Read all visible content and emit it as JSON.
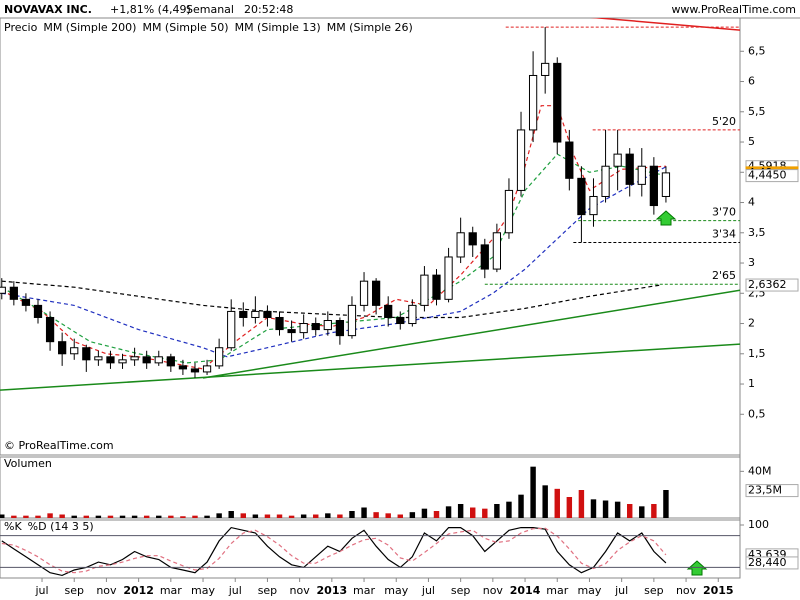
{
  "header": {
    "symbol": "NOVAVAX INC.",
    "change": "+1,81% (4,49)",
    "period": "Semanal",
    "time": "20:52:48",
    "site": "www.ProRealTime.com",
    "copyright": "© ProRealTime.com"
  },
  "chart_data": [
    {
      "type": "candlestick",
      "name": "Precio",
      "x": [
        -2.5,
        -1.75,
        -1,
        -0.25,
        0.5,
        1.25,
        2,
        2.75,
        3.5,
        4.25,
        5,
        5.75,
        6.5,
        7.25,
        8,
        8.75,
        9.5,
        10.25,
        11,
        11.75,
        12.5,
        13.25,
        14,
        14.75,
        15.5,
        16.25,
        17,
        17.75,
        18.5,
        19.25,
        20,
        20.75,
        21.5,
        22.25,
        23,
        23.75,
        24.5,
        25.25,
        26,
        26.75,
        27.5,
        28.25,
        29,
        29.75,
        30.5,
        31.25,
        32,
        32.75,
        33.5,
        34.25,
        35,
        35.75,
        36.5,
        37.25,
        38,
        38.75
      ],
      "open": [
        2.5,
        2.6,
        2.4,
        2.3,
        2.1,
        1.7,
        1.5,
        1.6,
        1.4,
        1.45,
        1.35,
        1.4,
        1.45,
        1.35,
        1.45,
        1.3,
        1.25,
        1.2,
        1.3,
        1.6,
        2.2,
        2.1,
        2.2,
        2.1,
        1.9,
        1.85,
        2.0,
        1.9,
        2.05,
        1.8,
        2.3,
        2.7,
        2.3,
        2.1,
        2.0,
        2.3,
        2.8,
        2.4,
        3.1,
        3.5,
        3.3,
        2.9,
        3.5,
        4.2,
        5.2,
        6.1,
        6.3,
        5.0,
        4.4,
        3.8,
        4.1,
        4.6,
        4.8,
        4.3,
        4.6,
        4.1
      ],
      "high": [
        2.75,
        2.7,
        2.5,
        2.4,
        2.2,
        1.85,
        1.75,
        1.65,
        1.55,
        1.55,
        1.5,
        1.6,
        1.55,
        1.55,
        1.5,
        1.4,
        1.35,
        1.4,
        1.75,
        2.4,
        2.35,
        2.45,
        2.3,
        2.2,
        2.05,
        2.15,
        2.1,
        2.2,
        2.1,
        2.45,
        2.85,
        2.75,
        2.45,
        2.2,
        2.4,
        2.95,
        2.9,
        3.25,
        3.75,
        3.6,
        3.4,
        3.65,
        4.4,
        5.5,
        6.5,
        6.9,
        6.4,
        5.2,
        4.6,
        4.4,
        5.2,
        5.2,
        4.9,
        4.9,
        4.75,
        4.6
      ],
      "low": [
        2.4,
        2.3,
        2.2,
        2.0,
        1.55,
        1.3,
        1.4,
        1.2,
        1.3,
        1.25,
        1.25,
        1.3,
        1.25,
        1.3,
        1.2,
        1.15,
        1.1,
        1.15,
        1.25,
        1.55,
        1.95,
        2.0,
        1.95,
        1.8,
        1.7,
        1.75,
        1.8,
        1.8,
        1.65,
        1.75,
        2.2,
        2.15,
        1.95,
        1.9,
        1.95,
        2.2,
        2.3,
        2.35,
        3.0,
        3.1,
        2.75,
        2.85,
        3.4,
        4.1,
        5.0,
        5.8,
        4.8,
        4.2,
        3.34,
        3.6,
        4.0,
        4.2,
        4.1,
        4.1,
        3.8,
        4.0
      ],
      "close": [
        2.6,
        2.4,
        2.3,
        2.1,
        1.7,
        1.5,
        1.6,
        1.4,
        1.45,
        1.35,
        1.4,
        1.45,
        1.35,
        1.45,
        1.3,
        1.25,
        1.2,
        1.3,
        1.6,
        2.2,
        2.1,
        2.2,
        2.1,
        1.9,
        1.85,
        2.0,
        1.9,
        2.05,
        1.8,
        2.3,
        2.7,
        2.3,
        2.1,
        2.0,
        2.3,
        2.8,
        2.4,
        3.1,
        3.5,
        3.3,
        2.9,
        3.5,
        4.2,
        5.2,
        6.1,
        6.3,
        5.0,
        4.4,
        3.8,
        4.1,
        4.6,
        4.8,
        4.3,
        4.6,
        3.95,
        4.49
      ],
      "series": [
        {
          "name": "MM (Simple 200)",
          "color": "#000000",
          "style": "dashed",
          "x": [
            -2.5,
            2,
            6,
            10,
            14,
            18,
            22,
            26,
            30,
            34,
            38.5
          ],
          "values": [
            2.7,
            2.6,
            2.45,
            2.3,
            2.2,
            2.15,
            2.1,
            2.1,
            2.25,
            2.45,
            2.64
          ]
        },
        {
          "name": "MM (Simple 50)",
          "color": "#1f2fbf",
          "style": "dashed",
          "x": [
            -2.5,
            2,
            6,
            10,
            11.5,
            14,
            18,
            22,
            26,
            28,
            30,
            32,
            34,
            36,
            38.75
          ],
          "values": [
            2.5,
            2.3,
            1.9,
            1.6,
            1.45,
            1.6,
            1.85,
            2.0,
            2.2,
            2.5,
            2.9,
            3.4,
            3.9,
            4.2,
            4.59
          ]
        },
        {
          "name": "MM (Simple 13)",
          "color": "#e02020",
          "style": "dashed",
          "x": [
            -2.5,
            0,
            2,
            4,
            6,
            8,
            10,
            12,
            14,
            16,
            18,
            20,
            22,
            24,
            26,
            28,
            29,
            30,
            31,
            32,
            33,
            34,
            36,
            38.75
          ],
          "values": [
            2.55,
            2.2,
            1.7,
            1.5,
            1.45,
            1.35,
            1.25,
            1.7,
            2.1,
            2.0,
            1.95,
            2.1,
            2.4,
            2.3,
            2.8,
            3.4,
            3.8,
            4.6,
            5.6,
            5.6,
            4.8,
            4.2,
            4.55,
            4.6
          ]
        },
        {
          "name": "MM (Simple 26)",
          "color": "#20a040",
          "style": "dashed",
          "x": [
            -2.5,
            0,
            3,
            6,
            9,
            11,
            14,
            18,
            22,
            26,
            28,
            30,
            32,
            34,
            36,
            38.75
          ],
          "values": [
            2.6,
            2.2,
            1.7,
            1.5,
            1.35,
            1.4,
            1.9,
            2.0,
            2.1,
            2.7,
            3.1,
            4.2,
            4.8,
            4.5,
            4.6,
            4.445
          ]
        }
      ],
      "trendlines": [
        {
          "color": "#1a8a1a",
          "x": [
            -2.61,
            43.35
          ],
          "y": [
            0.9,
            1.66
          ]
        },
        {
          "color": "#1a8a1a",
          "x": [
            10,
            43.35
          ],
          "y": [
            1.1,
            2.55
          ]
        },
        {
          "color": "#e02020",
          "x": [
            32.4,
            43.35
          ],
          "y": [
            7.1,
            6.85
          ]
        }
      ],
      "levels": [
        {
          "value": 6.9,
          "from": 28.8,
          "color": "#e02020"
        },
        {
          "value": 5.2,
          "label": "5'20",
          "from": 34.2,
          "color": "#e02020"
        },
        {
          "value": 3.7,
          "label": "3'70",
          "from": 33.3,
          "color": "#1a8a1a"
        },
        {
          "value": 3.34,
          "label": "3'34",
          "from": 33,
          "color": "#000000"
        },
        {
          "value": 2.65,
          "label": "2'65",
          "from": 27.5,
          "color": "#1a8a1a"
        }
      ],
      "tags": [
        {
          "value": 4.5918,
          "label": "4,5918",
          "color": "#1f2fbf"
        },
        {
          "value": 4.49,
          "label": "4,49",
          "color": "#f0a000",
          "filled": true
        },
        {
          "value": 4.445,
          "label": "4,4450",
          "color": "#20a040"
        },
        {
          "value": 2.6362,
          "label": "2,6362",
          "color": "#000000"
        }
      ],
      "xlim": [
        -2.61,
        43.35
      ],
      "ylim": [
        -0.14,
        7.05
      ],
      "yticks": [
        {
          "value": 0.5,
          "label": "0,5"
        },
        1,
        {
          "value": 1.5,
          "label": "1,5"
        },
        2,
        {
          "value": 2.5,
          "label": "2,5"
        },
        3,
        {
          "value": 3.5,
          "label": "3,5"
        },
        4,
        {
          "value": 4.5,
          "label": "4,5"
        },
        5,
        {
          "value": 5.5,
          "label": "5,5"
        },
        6,
        {
          "value": 6.5,
          "label": "6,5"
        }
      ]
    },
    {
      "type": "bar",
      "name": "Volumen",
      "x": [
        -2.5,
        -1.75,
        -1,
        -0.25,
        0.5,
        1.25,
        2,
        2.75,
        3.5,
        4.25,
        5,
        5.75,
        6.5,
        7.25,
        8,
        8.75,
        9.5,
        10.25,
        11,
        11.75,
        12.5,
        13.25,
        14,
        14.75,
        15.5,
        16.25,
        17,
        17.75,
        18.5,
        19.25,
        20,
        20.75,
        21.5,
        22.25,
        23,
        23.75,
        24.5,
        25.25,
        26,
        26.75,
        27.5,
        28.25,
        29,
        29.75,
        30.5,
        31.25,
        32,
        32.75,
        33.5,
        34.25,
        35,
        35.75,
        36.5,
        37.25,
        38,
        38.75
      ],
      "values": [
        3,
        2,
        2,
        2,
        4,
        3,
        2,
        2,
        2,
        2,
        2,
        2,
        2,
        2,
        2,
        1.5,
        2,
        2,
        4,
        6,
        4,
        3,
        3,
        3,
        2,
        3,
        3,
        4,
        3,
        6,
        9,
        5,
        4,
        3,
        5,
        8,
        6,
        10,
        12,
        9,
        8,
        12,
        14,
        20,
        44,
        28,
        25,
        18,
        24,
        16,
        15,
        14,
        12,
        10,
        12,
        24
      ],
      "up_color": "#000000",
      "down_color": "#d01010",
      "xlim": [
        -2.61,
        43.35
      ],
      "ylim": [
        0,
        48
      ],
      "yticks": [
        {
          "value": 40,
          "label": "40M"
        }
      ],
      "tags": [
        {
          "value": 23.5,
          "label": "23,5M",
          "color": "#000000"
        }
      ]
    },
    {
      "type": "line",
      "x": [
        -2.5,
        -1.75,
        -1,
        -0.25,
        0.5,
        1.25,
        2,
        2.75,
        3.5,
        4.25,
        5,
        5.75,
        6.5,
        7.25,
        8,
        8.75,
        9.5,
        10.25,
        11,
        11.75,
        12.5,
        13.25,
        14,
        14.75,
        15.5,
        16.25,
        17,
        17.75,
        18.5,
        19.25,
        20,
        20.75,
        21.5,
        22.25,
        23,
        23.75,
        24.5,
        25.25,
        26,
        26.75,
        27.5,
        28.25,
        29,
        29.75,
        30.5,
        31.25,
        32,
        32.75,
        33.5,
        34.25,
        35,
        35.75,
        36.5,
        37.25,
        38,
        38.75
      ],
      "series": [
        {
          "name": "%K",
          "color": "#000000",
          "style": "solid",
          "values": [
            70,
            55,
            40,
            25,
            10,
            5,
            15,
            20,
            30,
            25,
            35,
            50,
            40,
            35,
            20,
            15,
            10,
            30,
            70,
            95,
            90,
            85,
            60,
            40,
            25,
            20,
            40,
            60,
            50,
            75,
            90,
            60,
            35,
            20,
            40,
            85,
            70,
            95,
            95,
            80,
            50,
            70,
            90,
            95,
            95,
            92,
            50,
            25,
            10,
            20,
            50,
            85,
            70,
            85,
            50,
            28.44
          ]
        },
        {
          "name": "%D (14 3 5)",
          "color": "#e07080",
          "style": "dashed",
          "values": [
            65,
            62,
            52,
            40,
            25,
            13,
            10,
            13,
            22,
            25,
            30,
            37,
            42,
            42,
            32,
            23,
            15,
            18,
            37,
            65,
            85,
            90,
            78,
            62,
            42,
            28,
            28,
            40,
            50,
            62,
            72,
            75,
            62,
            38,
            32,
            48,
            65,
            83,
            87,
            90,
            75,
            67,
            70,
            85,
            93,
            94,
            79,
            55,
            28,
            18,
            27,
            52,
            68,
            80,
            70,
            43.639
          ]
        }
      ],
      "levels": [
        80,
        20
      ],
      "xlim": [
        -2.61,
        43.35
      ],
      "ylim": [
        0,
        100
      ],
      "yticks": [
        100
      ],
      "tags": [
        {
          "value": 43.639,
          "label": "43,639",
          "color": "#e07080"
        },
        {
          "value": 28.44,
          "label": "28,440",
          "color": "#000000"
        }
      ],
      "xticks": [
        {
          "value": 0,
          "label": "jul"
        },
        {
          "value": 2,
          "label": "sep"
        },
        {
          "value": 4,
          "label": "nov"
        },
        {
          "value": 6,
          "label": "2012"
        },
        {
          "value": 8,
          "label": "mar"
        },
        {
          "value": 10,
          "label": "may"
        },
        {
          "value": 12,
          "label": "jul"
        },
        {
          "value": 14,
          "label": "sep"
        },
        {
          "value": 16,
          "label": "nov"
        },
        {
          "value": 18,
          "label": "2013"
        },
        {
          "value": 20,
          "label": "mar"
        },
        {
          "value": 22,
          "label": "may"
        },
        {
          "value": 24,
          "label": "jul"
        },
        {
          "value": 26,
          "label": "sep"
        },
        {
          "value": 28,
          "label": "nov"
        },
        {
          "value": 30,
          "label": "2014"
        },
        {
          "value": 32,
          "label": "mar"
        },
        {
          "value": 34,
          "label": "may"
        },
        {
          "value": 36,
          "label": "jul"
        },
        {
          "value": 38,
          "label": "sep"
        },
        {
          "value": 40,
          "label": "nov"
        },
        {
          "value": 42,
          "label": "2015"
        }
      ]
    }
  ]
}
